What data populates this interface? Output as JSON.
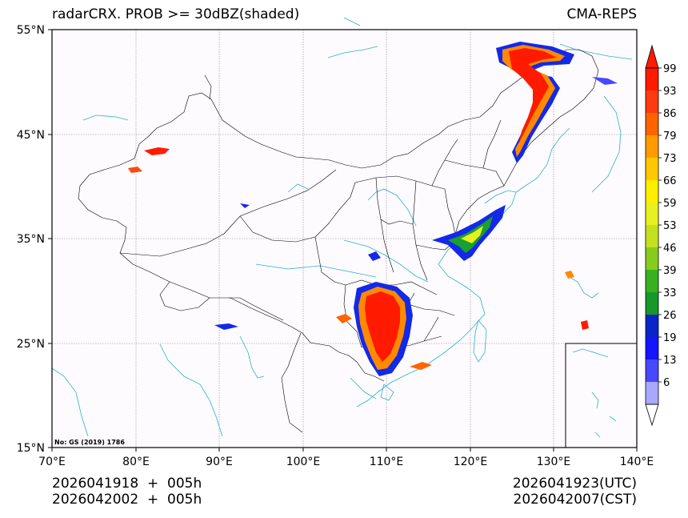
{
  "header": {
    "title_left": "radarCRX. PROB >= 30dBZ(shaded)",
    "title_right": "CMA-REPS"
  },
  "map": {
    "lat_ticks": [
      "55°N",
      "45°N",
      "35°N",
      "25°N",
      "15°N"
    ],
    "lon_ticks": [
      "70°E",
      "80°E",
      "90°E",
      "100°E",
      "110°E",
      "120°E",
      "130°E",
      "140°E"
    ],
    "credit": "No: GS (2019) 1786",
    "colors": {
      "border": "#000000",
      "coast": "#2ab0d6",
      "grid": "#888888",
      "land": "#fdfbfd"
    }
  },
  "colorbar": {
    "labels": [
      "99",
      "93",
      "86",
      "79",
      "73",
      "66",
      "59",
      "53",
      "46",
      "39",
      "33",
      "26",
      "19",
      "13",
      "6"
    ],
    "colors": [
      "#ff1a00",
      "#ff3a10",
      "#ff6400",
      "#ff9a00",
      "#ffc800",
      "#ffee00",
      "#e8f020",
      "#c4e020",
      "#86cc1c",
      "#38b020",
      "#16982a",
      "#0a24c8",
      "#1414ff",
      "#4848ff",
      "#a8a8ff"
    ]
  },
  "footer": {
    "left_line1": "2026041918  +  005h",
    "left_line2": "2026042002  +  005h",
    "right_line1": "2026041923(UTC)",
    "right_line2": "2026042007(CST)"
  }
}
